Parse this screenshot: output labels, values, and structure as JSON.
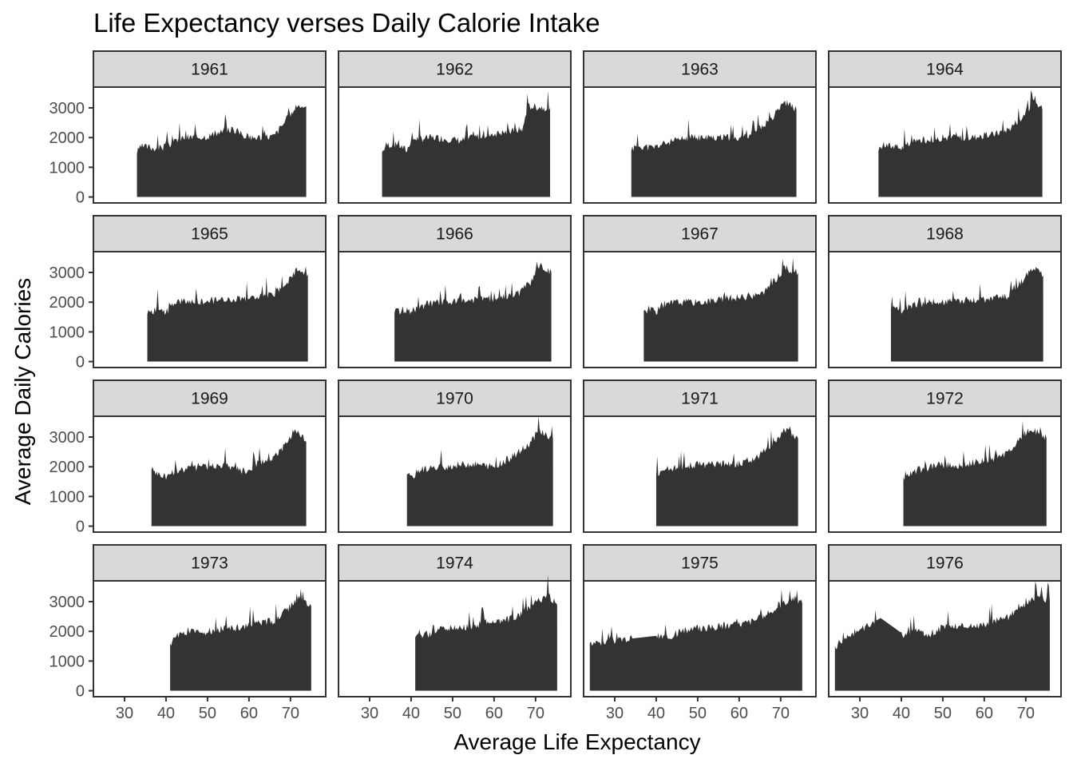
{
  "chart_data": {
    "type": "area",
    "title": "Life Expectancy verses Daily Calorie Intake",
    "xlabel": "Average Life Expectancy",
    "ylabel": "Average Daily Calories",
    "xlim": [
      22.5,
      78.5
    ],
    "ylim": [
      -200,
      3700
    ],
    "x_ticks": [
      30,
      40,
      50,
      60,
      70
    ],
    "y_ticks": [
      0,
      1000,
      2000,
      3000
    ],
    "fill_color": "#333333",
    "strip_fill": "#d9d9d9",
    "panel_border": "#333333",
    "grid": false,
    "facet_layout": {
      "rows": 4,
      "cols": 4
    },
    "panels": [
      {
        "label": "1961",
        "xmin": 33,
        "xmax": 73.8,
        "start": 1450,
        "seed": 3,
        "keypoints": [
          [
            33,
            1450
          ],
          [
            34,
            1700
          ],
          [
            38,
            1650
          ],
          [
            40,
            1700
          ],
          [
            44,
            2000
          ],
          [
            50,
            2050
          ],
          [
            56,
            2300
          ],
          [
            60,
            2000
          ],
          [
            66,
            2050
          ],
          [
            69,
            2600
          ],
          [
            72,
            3100
          ],
          [
            73.8,
            3050
          ]
        ]
      },
      {
        "label": "1962",
        "xmin": 33,
        "xmax": 73.5,
        "start": 1500,
        "seed": 7,
        "keypoints": [
          [
            33,
            1500
          ],
          [
            34,
            1750
          ],
          [
            37,
            1750
          ],
          [
            39,
            1550
          ],
          [
            40,
            1950
          ],
          [
            46,
            2000
          ],
          [
            52,
            1900
          ],
          [
            58,
            2100
          ],
          [
            64,
            2200
          ],
          [
            67,
            2300
          ],
          [
            68,
            3050
          ],
          [
            73.5,
            3000
          ]
        ]
      },
      {
        "label": "1963",
        "xmin": 34,
        "xmax": 73.8,
        "start": 1550,
        "seed": 11,
        "keypoints": [
          [
            34,
            1550
          ],
          [
            35,
            1750
          ],
          [
            39,
            1650
          ],
          [
            42,
            1800
          ],
          [
            48,
            2000
          ],
          [
            54,
            2000
          ],
          [
            60,
            2000
          ],
          [
            64,
            2200
          ],
          [
            68,
            2700
          ],
          [
            71,
            3200
          ],
          [
            73.8,
            2950
          ]
        ]
      },
      {
        "label": "1964",
        "xmin": 34.5,
        "xmax": 74,
        "start": 1550,
        "seed": 17,
        "keypoints": [
          [
            34.5,
            1550
          ],
          [
            36,
            1750
          ],
          [
            40,
            1650
          ],
          [
            44,
            1900
          ],
          [
            50,
            2000
          ],
          [
            56,
            2000
          ],
          [
            62,
            2100
          ],
          [
            66,
            2300
          ],
          [
            69,
            2700
          ],
          [
            72,
            3200
          ],
          [
            74,
            2950
          ]
        ]
      },
      {
        "label": "1965",
        "xmin": 35.5,
        "xmax": 74.2,
        "start": 1600,
        "seed": 23,
        "keypoints": [
          [
            35.5,
            1600
          ],
          [
            38,
            1800
          ],
          [
            40,
            1650
          ],
          [
            42,
            2000
          ],
          [
            48,
            2000
          ],
          [
            54,
            2100
          ],
          [
            60,
            2150
          ],
          [
            66,
            2250
          ],
          [
            70,
            2800
          ],
          [
            72,
            3150
          ],
          [
            74.2,
            2950
          ]
        ]
      },
      {
        "label": "1966",
        "xmin": 36,
        "xmax": 73.8,
        "start": 1650,
        "seed": 29,
        "keypoints": [
          [
            36,
            1650
          ],
          [
            38,
            1750
          ],
          [
            40,
            1700
          ],
          [
            44,
            1950
          ],
          [
            50,
            2000
          ],
          [
            56,
            2100
          ],
          [
            62,
            2150
          ],
          [
            66,
            2300
          ],
          [
            69,
            2700
          ],
          [
            71,
            3250
          ],
          [
            73.8,
            3000
          ]
        ]
      },
      {
        "label": "1967",
        "xmin": 37,
        "xmax": 74.2,
        "start": 1700,
        "seed": 31,
        "keypoints": [
          [
            37,
            1700
          ],
          [
            39,
            1800
          ],
          [
            40,
            1700
          ],
          [
            44,
            2000
          ],
          [
            50,
            2000
          ],
          [
            56,
            2100
          ],
          [
            62,
            2200
          ],
          [
            66,
            2300
          ],
          [
            69,
            2800
          ],
          [
            71,
            3150
          ],
          [
            74.2,
            3000
          ]
        ]
      },
      {
        "label": "1968",
        "xmin": 37.5,
        "xmax": 74.2,
        "start": 1750,
        "seed": 37,
        "keypoints": [
          [
            37.5,
            1750
          ],
          [
            39,
            1750
          ],
          [
            40,
            1600
          ],
          [
            42,
            1900
          ],
          [
            48,
            2000
          ],
          [
            54,
            2050
          ],
          [
            60,
            2100
          ],
          [
            66,
            2200
          ],
          [
            69,
            2700
          ],
          [
            72,
            3200
          ],
          [
            74.2,
            2900
          ]
        ]
      },
      {
        "label": "1969",
        "xmin": 36.5,
        "xmax": 73.8,
        "start": 1900,
        "seed": 41,
        "keypoints": [
          [
            36.5,
            1900
          ],
          [
            38,
            1750
          ],
          [
            40,
            1650
          ],
          [
            42,
            1850
          ],
          [
            48,
            2000
          ],
          [
            54,
            2050
          ],
          [
            60,
            1800
          ],
          [
            62,
            2100
          ],
          [
            66,
            2300
          ],
          [
            69,
            2800
          ],
          [
            71,
            3250
          ],
          [
            73.8,
            2850
          ]
        ]
      },
      {
        "label": "1970",
        "xmin": 39,
        "xmax": 74.2,
        "start": 1750,
        "seed": 43,
        "keypoints": [
          [
            39,
            1750
          ],
          [
            40,
            1600
          ],
          [
            42,
            1900
          ],
          [
            48,
            2000
          ],
          [
            54,
            2100
          ],
          [
            60,
            2000
          ],
          [
            64,
            2300
          ],
          [
            68,
            2700
          ],
          [
            71,
            3250
          ],
          [
            74.2,
            2900
          ]
        ]
      },
      {
        "label": "1971",
        "xmin": 40,
        "xmax": 74.2,
        "start": 1700,
        "seed": 47,
        "keypoints": [
          [
            40,
            1700
          ],
          [
            42,
            1900
          ],
          [
            48,
            2050
          ],
          [
            54,
            2100
          ],
          [
            60,
            2100
          ],
          [
            64,
            2300
          ],
          [
            68,
            2750
          ],
          [
            71,
            3250
          ],
          [
            74.2,
            2950
          ]
        ]
      },
      {
        "label": "1972",
        "xmin": 40.5,
        "xmax": 75,
        "start": 1650,
        "seed": 53,
        "keypoints": [
          [
            40.5,
            1650
          ],
          [
            42,
            1800
          ],
          [
            48,
            2050
          ],
          [
            54,
            2050
          ],
          [
            60,
            2200
          ],
          [
            64,
            2350
          ],
          [
            68,
            2800
          ],
          [
            71,
            3300
          ],
          [
            75,
            2950
          ]
        ]
      },
      {
        "label": "1973",
        "xmin": 41,
        "xmax": 75,
        "start": 1600,
        "seed": 59,
        "keypoints": [
          [
            41,
            1600
          ],
          [
            43,
            1900
          ],
          [
            46,
            2000
          ],
          [
            48,
            1950
          ],
          [
            52,
            2050
          ],
          [
            58,
            2150
          ],
          [
            62,
            2300
          ],
          [
            66,
            2350
          ],
          [
            69,
            2700
          ],
          [
            72,
            3150
          ],
          [
            75,
            2850
          ]
        ]
      },
      {
        "label": "1974",
        "xmin": 41,
        "xmax": 75.2,
        "start": 1800,
        "seed": 61,
        "keypoints": [
          [
            41,
            1800
          ],
          [
            44,
            1850
          ],
          [
            48,
            2100
          ],
          [
            54,
            2150
          ],
          [
            58,
            2300
          ],
          [
            62,
            2350
          ],
          [
            66,
            2500
          ],
          [
            70,
            3000
          ],
          [
            73,
            3200
          ],
          [
            75.2,
            2900
          ]
        ]
      },
      {
        "label": "1975",
        "xmin": 24,
        "xmax": 75.2,
        "start": 1600,
        "seed": 67,
        "keypoints": [
          [
            24,
            1600
          ],
          [
            40,
            1850
          ],
          [
            43,
            1800
          ],
          [
            46,
            2000
          ],
          [
            50,
            2100
          ],
          [
            54,
            2150
          ],
          [
            58,
            2200
          ],
          [
            62,
            2300
          ],
          [
            66,
            2500
          ],
          [
            70,
            2900
          ],
          [
            73,
            3150
          ],
          [
            75.2,
            2950
          ]
        ]
      },
      {
        "label": "1976",
        "xmin": 24,
        "xmax": 75.8,
        "start": 1500,
        "seed": 71,
        "keypoints": [
          [
            24,
            1500
          ],
          [
            35,
            2450
          ],
          [
            41,
            1850
          ],
          [
            43,
            2050
          ],
          [
            46,
            1850
          ],
          [
            50,
            2150
          ],
          [
            54,
            2200
          ],
          [
            58,
            2200
          ],
          [
            62,
            2300
          ],
          [
            66,
            2500
          ],
          [
            70,
            2900
          ],
          [
            73,
            3200
          ],
          [
            75.8,
            3000
          ]
        ]
      }
    ]
  }
}
